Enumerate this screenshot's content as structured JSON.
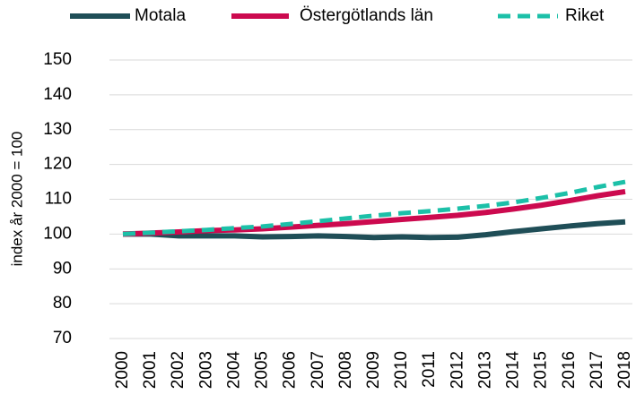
{
  "chart_data": {
    "type": "line",
    "y_label": "index år 2000 = 100",
    "categories": [
      "2000",
      "2001",
      "2002",
      "2003",
      "2004",
      "2005",
      "2006",
      "2007",
      "2008",
      "2009",
      "2010",
      "2011",
      "2012",
      "2013",
      "2014",
      "2015",
      "2016",
      "2017",
      "2018"
    ],
    "series": [
      {
        "name": "Motala",
        "color": "#1f4e57",
        "dash": false,
        "values": [
          100,
          100,
          99.5,
          99.5,
          99.5,
          99.2,
          99.3,
          99.5,
          99.3,
          99,
          99.2,
          99,
          99.1,
          99.8,
          100.7,
          101.5,
          102.3,
          103,
          103.5
        ]
      },
      {
        "name": "Östergötlands län",
        "color": "#cc0a4f",
        "dash": false,
        "values": [
          100,
          100.3,
          100.6,
          101,
          101.2,
          101.5,
          102,
          102.5,
          103,
          103.6,
          104.2,
          104.8,
          105.4,
          106.2,
          107.2,
          108.3,
          109.6,
          111,
          112.2
        ]
      },
      {
        "name": "Riket",
        "color": "#1cc0a8",
        "dash": true,
        "values": [
          100,
          100.4,
          100.8,
          101.2,
          101.7,
          102.2,
          102.9,
          103.7,
          104.5,
          105.3,
          106,
          106.6,
          107.3,
          108.1,
          109.1,
          110.4,
          111.8,
          113.5,
          115
        ]
      }
    ],
    "ylim": [
      70,
      150
    ],
    "yticks": [
      70,
      80,
      90,
      100,
      110,
      120,
      130,
      140,
      150
    ],
    "grid": true,
    "legend": "top"
  }
}
